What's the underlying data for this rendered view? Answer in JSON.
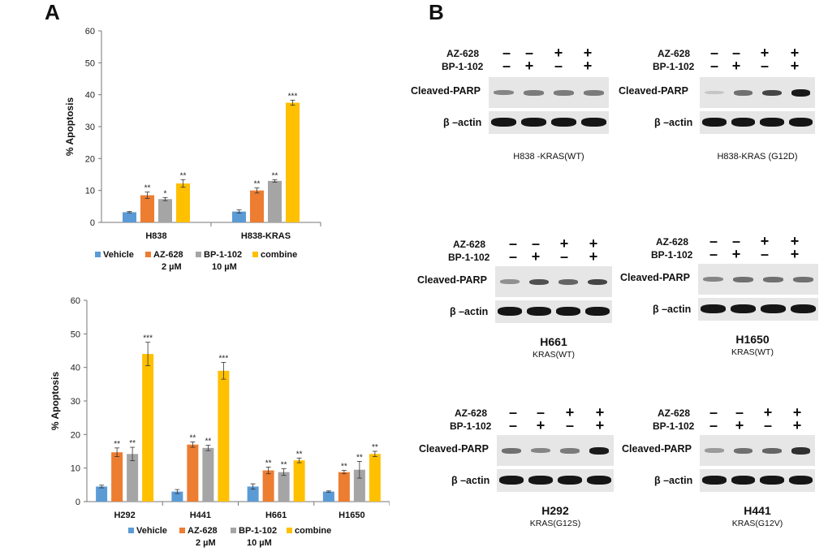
{
  "panels": {
    "a": "A",
    "b": "B"
  },
  "colors": {
    "vehicle": "#5b9bd5",
    "az628": "#ed7d31",
    "bp1102": "#a5a5a5",
    "combine": "#ffc000"
  },
  "chart_data": [
    {
      "type": "bar",
      "title": "",
      "ylabel": "% Apoptosis",
      "xlabel": "",
      "ylim": [
        0,
        60
      ],
      "yticks": [
        "0",
        "10",
        "20",
        "30",
        "40",
        "50",
        "60"
      ],
      "categories": [
        "H838",
        "H838-KRAS"
      ],
      "series": [
        {
          "name": "Vehicle",
          "values": [
            3.2,
            3.4
          ],
          "errors": [
            0.2,
            0.5
          ],
          "sig": [
            "",
            ""
          ]
        },
        {
          "name": "AZ-628 2 µM",
          "values": [
            8.5,
            10.0
          ],
          "errors": [
            1.0,
            0.8
          ],
          "sig": [
            "**",
            "**"
          ]
        },
        {
          "name": "BP-1-102 10 µM",
          "values": [
            7.3,
            13.0
          ],
          "errors": [
            0.5,
            0.4
          ],
          "sig": [
            "*",
            "**"
          ]
        },
        {
          "name": "combine",
          "values": [
            12.2,
            37.5
          ],
          "errors": [
            1.2,
            0.8
          ],
          "sig": [
            "**",
            "***"
          ]
        }
      ],
      "legend": [
        "Vehicle",
        "AZ-628",
        "2 µM",
        "BP-1-102",
        "10 µM",
        "combine"
      ]
    },
    {
      "type": "bar",
      "title": "",
      "ylabel": "% Apoptosis",
      "xlabel": "",
      "ylim": [
        0,
        60
      ],
      "yticks": [
        "0",
        "10",
        "20",
        "30",
        "40",
        "50",
        "60"
      ],
      "categories": [
        "H292",
        "H441",
        "H661",
        "H1650"
      ],
      "series": [
        {
          "name": "Vehicle",
          "values": [
            4.5,
            3.0,
            4.5,
            3.0
          ],
          "errors": [
            0.4,
            0.6,
            0.8,
            0.2
          ],
          "sig": [
            "",
            "",
            "",
            ""
          ]
        },
        {
          "name": "AZ-628 2 µM",
          "values": [
            14.7,
            17.0,
            9.3,
            8.8
          ],
          "errors": [
            1.3,
            0.8,
            1.0,
            0.5
          ],
          "sig": [
            "**",
            "**",
            "**",
            "**"
          ]
        },
        {
          "name": "BP-1-102 10 µM",
          "values": [
            14.2,
            16.0,
            8.8,
            9.5
          ],
          "errors": [
            2.0,
            0.8,
            1.0,
            2.5
          ],
          "sig": [
            "**",
            "**",
            "**",
            "**"
          ]
        },
        {
          "name": "combine",
          "values": [
            44.0,
            39.0,
            12.3,
            14.2
          ],
          "errors": [
            3.5,
            2.5,
            0.7,
            0.8
          ],
          "sig": [
            "***",
            "***",
            "**",
            "**"
          ]
        }
      ],
      "legend": [
        "Vehicle",
        "AZ-628",
        "2 µM",
        "BP-1-102",
        "10 µM",
        "combine"
      ]
    }
  ],
  "blots": [
    {
      "az628": [
        "-",
        "-",
        "+",
        "+"
      ],
      "bp1102": [
        "-",
        "+",
        "-",
        "+"
      ],
      "az_label": "AZ-628",
      "bp_label": "BP-1-102",
      "parp_label": "Cleaved-PARP",
      "actin_label": "β –actin",
      "parp_intensity": [
        0.45,
        0.5,
        0.5,
        0.5
      ],
      "actin_intensity": [
        1,
        1,
        1,
        1
      ],
      "caption_main": "H838 -KRAS(WT)",
      "caption_sub": ""
    },
    {
      "az628": [
        "-",
        "-",
        "+",
        "+"
      ],
      "bp1102": [
        "-",
        "+",
        "-",
        "+"
      ],
      "az_label": "AZ-628",
      "bp_label": "BP-1-102",
      "parp_label": "Cleaved-PARP",
      "actin_label": "β –actin",
      "parp_intensity": [
        0.15,
        0.55,
        0.75,
        0.95
      ],
      "actin_intensity": [
        1,
        1,
        1,
        1
      ],
      "caption_main": "H838-KRAS  (G12D)",
      "caption_sub": ""
    },
    {
      "az628": [
        "-",
        "-",
        "+",
        "+"
      ],
      "bp1102": [
        "-",
        "+",
        "-",
        "+"
      ],
      "az_label": "AZ-628",
      "bp_label": "BP-1-102",
      "parp_label": "Cleaved-PARP",
      "actin_label": "β –actin",
      "parp_intensity": [
        0.4,
        0.7,
        0.6,
        0.75
      ],
      "actin_intensity": [
        1,
        1,
        1,
        1
      ],
      "caption_main": "H661",
      "caption_sub": "KRAS(WT)"
    },
    {
      "az628": [
        "-",
        "-",
        "+",
        "+"
      ],
      "bp1102": [
        "-",
        "+",
        "-",
        "+"
      ],
      "az_label": "AZ-628",
      "bp_label": "BP-1-102",
      "parp_label": "Cleaved-PARP",
      "actin_label": "β –actin",
      "parp_intensity": [
        0.45,
        0.55,
        0.55,
        0.55
      ],
      "actin_intensity": [
        1,
        1,
        1,
        1
      ],
      "caption_main": "H1650",
      "caption_sub": "KRAS(WT)"
    },
    {
      "az628": [
        "-",
        "-",
        "+",
        "+"
      ],
      "bp1102": [
        "-",
        "+",
        "-",
        "+"
      ],
      "az_label": "AZ-628",
      "bp_label": "BP-1-102",
      "parp_label": "Cleaved-PARP",
      "actin_label": "β –actin",
      "parp_intensity": [
        0.55,
        0.45,
        0.5,
        0.95
      ],
      "actin_intensity": [
        1,
        1,
        1,
        1
      ],
      "caption_main": "H292",
      "caption_sub": "KRAS(G12S)"
    },
    {
      "az628": [
        "-",
        "-",
        "+",
        "+"
      ],
      "bp1102": [
        "-",
        "+",
        "-",
        "+"
      ],
      "az_label": "AZ-628",
      "bp_label": "BP-1-102",
      "parp_label": "Cleaved-PARP",
      "actin_label": "β –actin",
      "parp_intensity": [
        0.35,
        0.55,
        0.6,
        0.85
      ],
      "actin_intensity": [
        1,
        1,
        1,
        1
      ],
      "caption_main": "H441",
      "caption_sub": "KRAS(G12V)"
    }
  ]
}
